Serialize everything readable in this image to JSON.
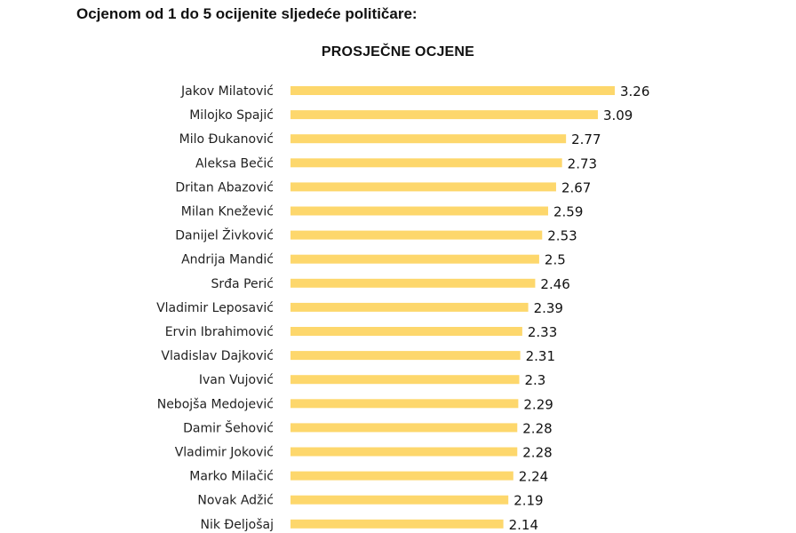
{
  "question": "Ocjenom od 1 do 5 ocijenite sljedeće političare:",
  "chart_data": {
    "type": "bar",
    "orientation": "horizontal",
    "title": "PROSJEČNE OCJENE",
    "categories": [
      "Jakov Milatović",
      "Milojko Spajić",
      "Milo Đukanović",
      "Aleksa Bečić",
      "Dritan Abazović",
      "Milan Knežević",
      "Danijel Živković",
      "Andrija Mandić",
      "Srđa Perić",
      "Vladimir Leposavić",
      "Ervin Ibrahimović",
      "Vladislav Dajković",
      "Ivan Vujović",
      "Nebojša Medojević",
      "Damir Šehović",
      "Vladimir Joković",
      "Marko Milačić",
      "Novak Adžić",
      "Nik Đeljošaj"
    ],
    "values": [
      3.26,
      3.09,
      2.77,
      2.73,
      2.67,
      2.59,
      2.53,
      2.5,
      2.46,
      2.39,
      2.33,
      2.31,
      2.3,
      2.29,
      2.28,
      2.28,
      2.24,
      2.19,
      2.14
    ],
    "value_labels": [
      "3.26",
      "3.09",
      "2.77",
      "2.73",
      "2.67",
      "2.59",
      "2.53",
      "2.5",
      "2.46",
      "2.39",
      "2.33",
      "2.31",
      "2.3",
      "2.29",
      "2.28",
      "2.28",
      "2.24",
      "2.19",
      "2.14"
    ],
    "bar_color": "#FDD76C",
    "xlim": [
      0,
      3.26
    ],
    "grid": false,
    "legend": "none"
  }
}
